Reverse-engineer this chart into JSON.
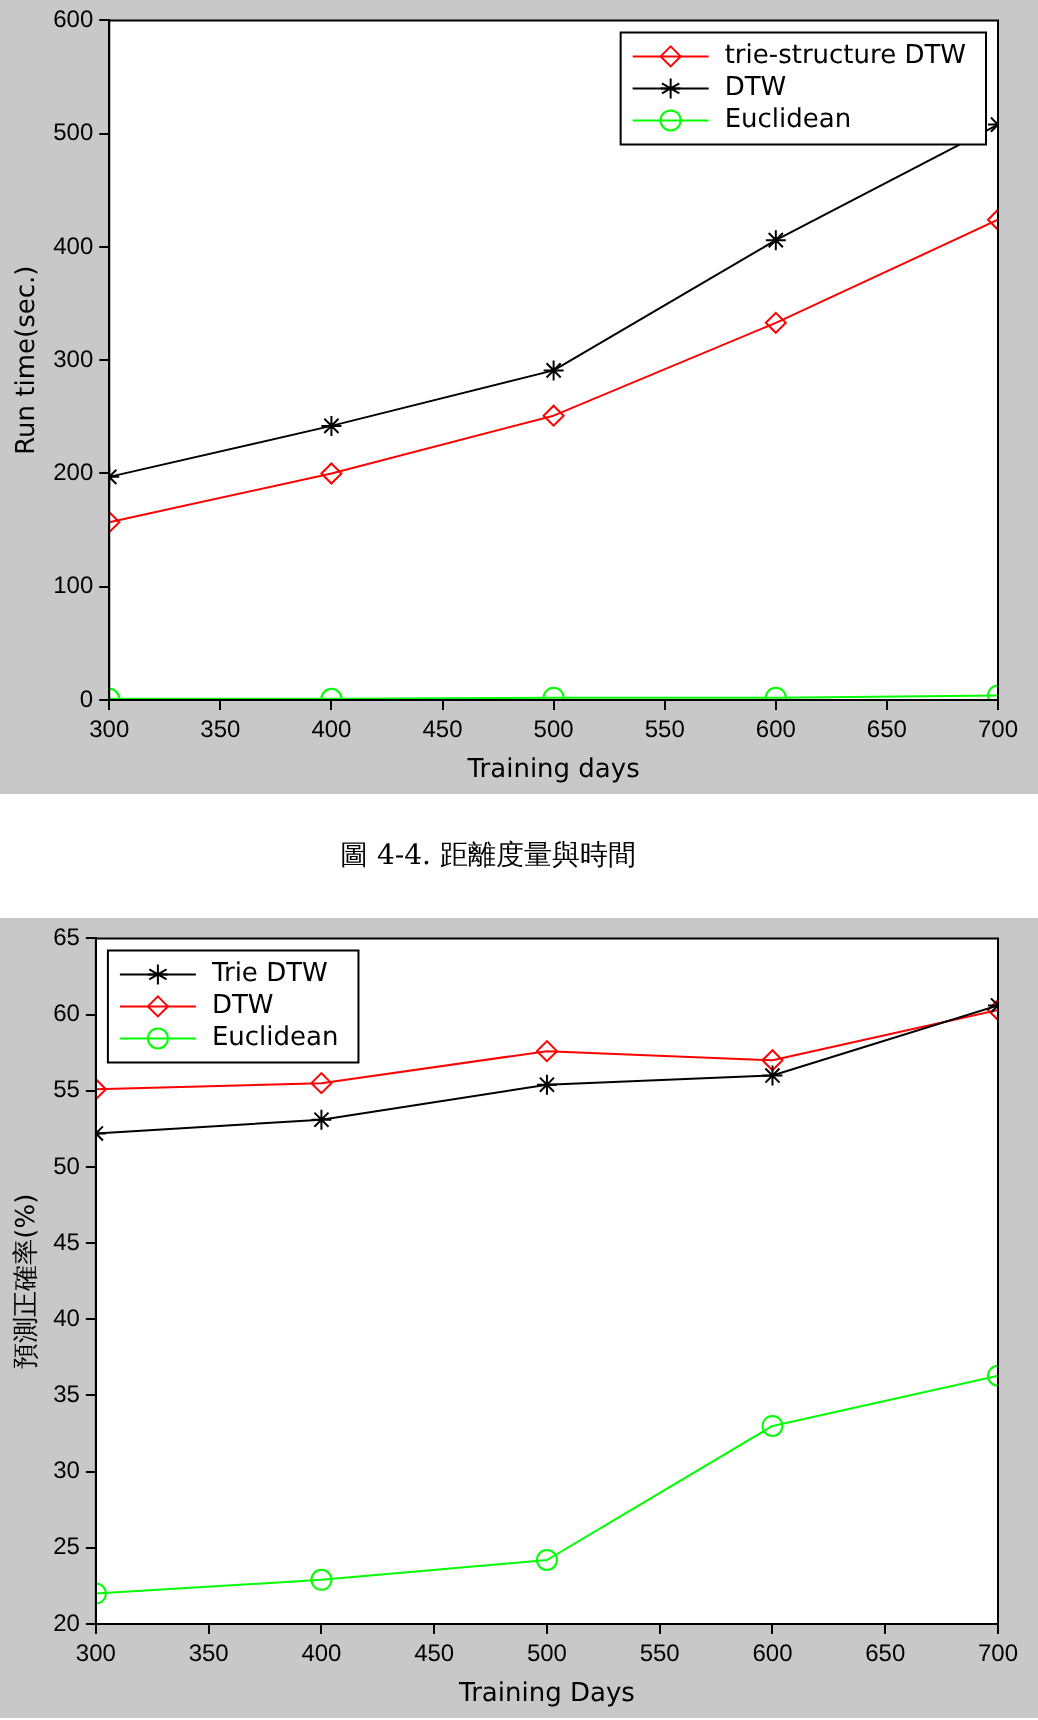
{
  "chart_data": [
    {
      "type": "line",
      "xlabel": "Training days",
      "ylabel": "Run time(sec.)",
      "x": [
        300,
        400,
        500,
        600,
        700
      ],
      "xlim": [
        300,
        700
      ],
      "xticks": [
        300,
        350,
        400,
        450,
        500,
        550,
        600,
        650,
        700
      ],
      "ylim": [
        0,
        600
      ],
      "yticks": [
        0,
        100,
        200,
        300,
        400,
        500,
        600
      ],
      "grid": false,
      "legend": "top right",
      "line_style": "solid",
      "series": [
        {
          "name": "trie-structure DTW",
          "color": "#ff0000",
          "marker": "diamond",
          "values": [
            157,
            200,
            251,
            333,
            424
          ]
        },
        {
          "name": "DTW",
          "color": "#000000",
          "marker": "cross",
          "values": [
            197,
            242,
            291,
            406,
            508
          ]
        },
        {
          "name": "Euclidean",
          "color": "#00ff00",
          "marker": "circle",
          "values": [
            1,
            1,
            2,
            2,
            4
          ]
        }
      ],
      "annotations": [
        "圖 4-4. 距離度量與時間"
      ]
    },
    {
      "type": "line",
      "xlabel": "Training Days",
      "ylabel": "預測正確率(%)",
      "x": [
        300,
        400,
        500,
        600,
        700
      ],
      "xlim": [
        300,
        700
      ],
      "xticks": [
        300,
        350,
        400,
        450,
        500,
        550,
        600,
        650,
        700
      ],
      "ylim": [
        20,
        65
      ],
      "yticks": [
        20,
        25,
        30,
        35,
        40,
        45,
        50,
        55,
        60,
        65
      ],
      "grid": false,
      "legend": "top left",
      "line_style": "solid",
      "series": [
        {
          "name": "Trie DTW",
          "color": "#000000",
          "marker": "cross",
          "values": [
            52.2,
            53.1,
            55.4,
            56.0,
            60.6
          ]
        },
        {
          "name": "DTW",
          "color": "#ff0000",
          "marker": "diamond",
          "values": [
            55.1,
            55.5,
            57.6,
            57.0,
            60.3
          ]
        },
        {
          "name": "Euclidean",
          "color": "#00ff00",
          "marker": "circle",
          "values": [
            22.0,
            22.9,
            24.2,
            33.0,
            36.3
          ]
        }
      ]
    }
  ]
}
